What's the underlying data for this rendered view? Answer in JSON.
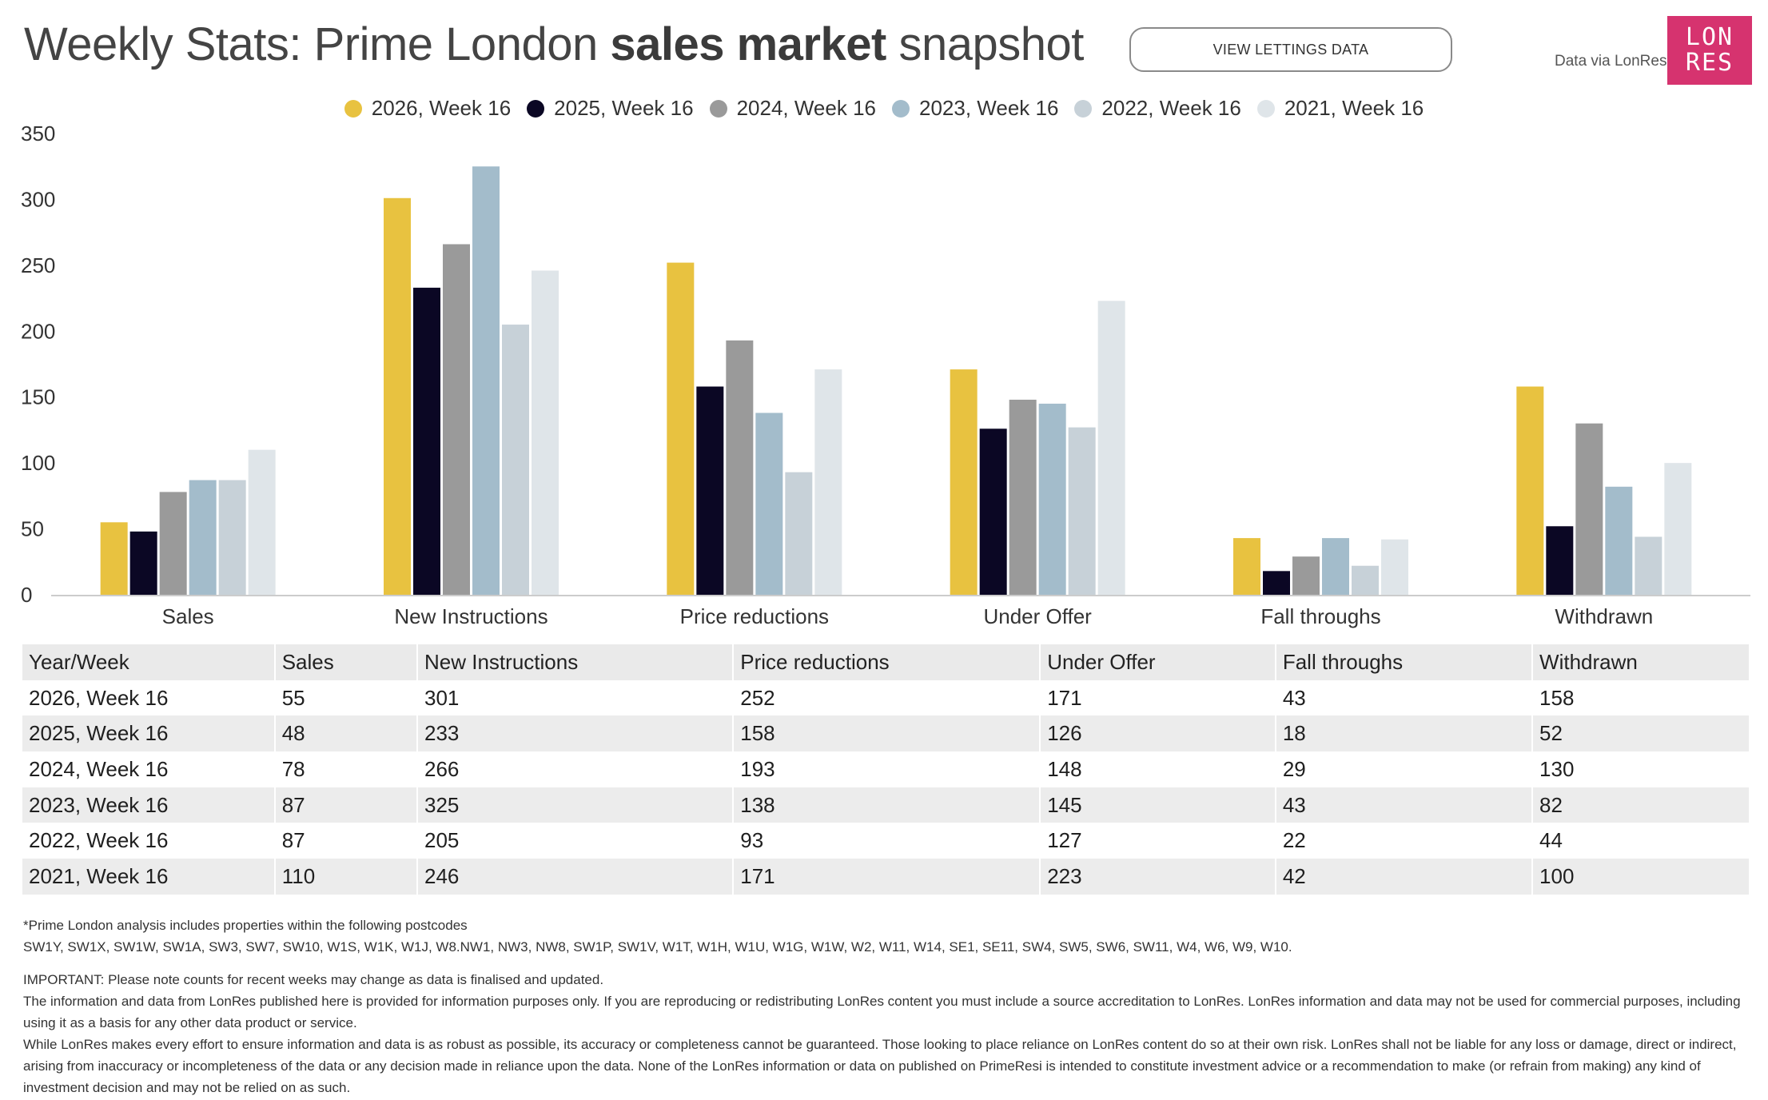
{
  "header": {
    "title_prefix": "Weekly Stats: Prime London ",
    "title_bold": "sales market",
    "title_suffix": " snapshot",
    "lettings_button": "VIEW LETTINGS DATA",
    "attribution": "Data via LonRes",
    "logo_line1": "LON",
    "logo_line2": "RES"
  },
  "colors": {
    "series": [
      "#e8c240",
      "#0b0724",
      "#9a9a9a",
      "#a3bccb",
      "#c7d1d8",
      "#dfe5e9"
    ],
    "axis": "#cccccc",
    "logo_bg": "#d6336f"
  },
  "chart_data": {
    "type": "bar",
    "categories": [
      "Sales",
      "New Instructions",
      "Price reductions",
      "Under Offer",
      "Fall throughs",
      "Withdrawn"
    ],
    "series": [
      {
        "name": "2026, Week 16",
        "values": [
          55,
          301,
          252,
          171,
          43,
          158
        ]
      },
      {
        "name": "2025, Week 16",
        "values": [
          48,
          233,
          158,
          126,
          18,
          52
        ]
      },
      {
        "name": "2024, Week 16",
        "values": [
          78,
          266,
          193,
          148,
          29,
          130
        ]
      },
      {
        "name": "2023, Week 16",
        "values": [
          87,
          325,
          138,
          145,
          43,
          82
        ]
      },
      {
        "name": "2022, Week 16",
        "values": [
          87,
          205,
          93,
          127,
          22,
          44
        ]
      },
      {
        "name": "2021, Week 16",
        "values": [
          110,
          246,
          171,
          223,
          42,
          100
        ]
      }
    ],
    "yticks": [
      "0",
      "50",
      "100",
      "150",
      "200",
      "250",
      "300",
      "350"
    ],
    "ylim": [
      0,
      350
    ],
    "title": "",
    "xlabel": "",
    "ylabel": "",
    "legend": "top-center",
    "grid": false
  },
  "table": {
    "headers": [
      "Year/Week",
      "Sales",
      "New Instructions",
      "Price reductions",
      "Under Offer",
      "Fall throughs",
      "Withdrawn"
    ],
    "rows": [
      [
        "2026, Week 16",
        "55",
        "301",
        "252",
        "171",
        "43",
        "158"
      ],
      [
        "2025, Week 16",
        "48",
        "233",
        "158",
        "126",
        "18",
        "52"
      ],
      [
        "2024, Week 16",
        "78",
        "266",
        "193",
        "148",
        "29",
        "130"
      ],
      [
        "2023, Week 16",
        "87",
        "325",
        "138",
        "145",
        "43",
        "82"
      ],
      [
        "2022, Week 16",
        "87",
        "205",
        "93",
        "127",
        "22",
        "44"
      ],
      [
        "2021, Week 16",
        "110",
        "246",
        "171",
        "223",
        "42",
        "100"
      ]
    ]
  },
  "footer": {
    "postcode_intro": "*Prime London analysis includes properties within the following postcodes",
    "postcodes": "SW1Y, SW1X, SW1W, SW1A, SW3, SW7, SW10, W1S, W1K, W1J, W8.NW1, NW3, NW8, SW1P, SW1V, W1T, W1H, W1U, W1G, W1W, W2, W11, W14, SE1, SE11, SW4, SW5, SW6, SW11, W4, W6, W9, W10.",
    "important": "IMPORTANT: Please note counts for recent weeks may change as data is finalised and updated.",
    "info": "The information and data from LonRes published here is provided for information purposes only. If you are reproducing or redistributing LonRes content you must include a source accreditation to LonRes. LonRes information and data may not be used for commercial purposes, including using it as a basis for any other data product or service.",
    "disclaimer": "While LonRes makes every effort to ensure information and data is as robust as possible, its accuracy or completeness cannot be guaranteed. Those looking to place reliance on LonRes content do so at their own risk. LonRes shall not be liable for any loss or damage, direct or indirect, arising from inaccuracy or incompleteness of the data or any decision made in reliance upon the data. None of the LonRes information or data on published on PrimeResi is intended to constitute investment advice or a recommendation to make (or refrain from making) any kind of investment decision and may not be relied on as such."
  }
}
